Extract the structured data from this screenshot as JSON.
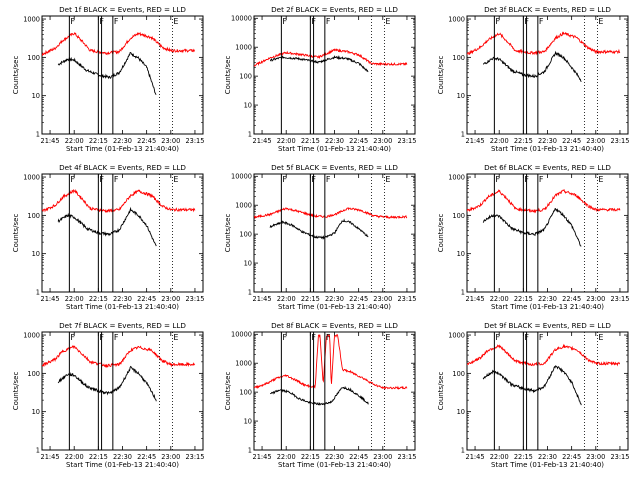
{
  "chart_data": [
    {
      "type": "line",
      "title": "Det 1f BLACK = Events, RED = LLD",
      "xlabel": "Start Time (01-Feb-13 21:40:40)",
      "ylabel": "Counts/sec",
      "xticks": [
        "21:45",
        "22:00",
        "22:15",
        "22:30",
        "22:45",
        "23:00",
        "23:15"
      ],
      "yticks": [
        "1",
        "10",
        "100",
        "1000"
      ],
      "ylim": [
        1,
        1200
      ],
      "yscale": "log",
      "x_range_minutes": [
        0,
        100
      ],
      "series": [
        {
          "name": "Events",
          "color": "#000000",
          "x": [
            10,
            16,
            20,
            28,
            35,
            42,
            48,
            55,
            60,
            65,
            71
          ],
          "values": [
            65,
            90,
            85,
            45,
            35,
            30,
            40,
            130,
            95,
            55,
            10
          ]
        },
        {
          "name": "LLD",
          "color": "#ff0000",
          "x": [
            0,
            8,
            13,
            20,
            25,
            30,
            40,
            48,
            55,
            60,
            68,
            75,
            80,
            95
          ],
          "values": [
            120,
            170,
            280,
            430,
            260,
            150,
            130,
            140,
            320,
            420,
            330,
            180,
            150,
            150
          ]
        }
      ],
      "markers": {
        "solid": [
          17,
          35,
          37,
          44
        ],
        "dotted": [
          73,
          81
        ],
        "flags": [
          {
            "label": "F",
            "x": 17
          },
          {
            "label": "F",
            "x": 35
          },
          {
            "label": "F",
            "x": 44
          },
          {
            "label": "E",
            "x": 81
          }
        ]
      }
    },
    {
      "type": "line",
      "title": "Det 2f BLACK = Events, RED = LLD",
      "xlabel": "Start Time (01-Feb-13 21:40:40)",
      "ylabel": "Counts/sec",
      "xticks": [
        "21:45",
        "22:00",
        "22:15",
        "22:30",
        "22:45",
        "23:00",
        "23:15"
      ],
      "yticks": [
        "1",
        "10",
        "100",
        "1000",
        "10000"
      ],
      "ylim": [
        1,
        12000
      ],
      "yscale": "log",
      "x_range_minutes": [
        0,
        100
      ],
      "series": [
        {
          "name": "Events",
          "color": "#000000",
          "x": [
            10,
            18,
            28,
            40,
            50,
            58,
            65,
            71
          ],
          "values": [
            350,
            450,
            400,
            300,
            450,
            400,
            280,
            140
          ]
        },
        {
          "name": "LLD",
          "color": "#ff0000",
          "x": [
            0,
            10,
            20,
            30,
            40,
            50,
            58,
            65,
            73,
            80,
            95
          ],
          "values": [
            230,
            430,
            650,
            550,
            450,
            800,
            700,
            550,
            270,
            260,
            260
          ]
        }
      ],
      "markers": {
        "solid": [
          17,
          35,
          37,
          44
        ],
        "dotted": [
          73,
          81
        ],
        "flags": [
          {
            "label": "F",
            "x": 17
          },
          {
            "label": "F",
            "x": 35
          },
          {
            "label": "F",
            "x": 44
          },
          {
            "label": "E",
            "x": 81
          }
        ]
      }
    },
    {
      "type": "line",
      "title": "Det 3f BLACK = Events, RED = LLD",
      "xlabel": "Start Time (01-Feb-13 21:40:40)",
      "ylabel": "Counts/sec",
      "xticks": [
        "21:45",
        "22:00",
        "22:15",
        "22:30",
        "22:45",
        "23:00",
        "23:15"
      ],
      "yticks": [
        "1",
        "10",
        "100",
        "1000"
      ],
      "ylim": [
        1,
        1200
      ],
      "yscale": "log",
      "x_range_minutes": [
        0,
        100
      ],
      "series": [
        {
          "name": "Events",
          "color": "#000000",
          "x": [
            10,
            16,
            20,
            28,
            35,
            42,
            48,
            55,
            60,
            65,
            71
          ],
          "values": [
            65,
            95,
            90,
            45,
            35,
            32,
            42,
            130,
            100,
            55,
            25
          ]
        },
        {
          "name": "LLD",
          "color": "#ff0000",
          "x": [
            0,
            8,
            13,
            20,
            25,
            30,
            40,
            48,
            55,
            60,
            68,
            75,
            80,
            95
          ],
          "values": [
            120,
            180,
            280,
            420,
            260,
            150,
            130,
            140,
            320,
            420,
            330,
            180,
            140,
            140
          ]
        }
      ],
      "markers": {
        "solid": [
          17,
          35,
          37,
          44
        ],
        "dotted": [
          73,
          81
        ],
        "flags": [
          {
            "label": "F",
            "x": 17
          },
          {
            "label": "F",
            "x": 35
          },
          {
            "label": "F",
            "x": 44
          },
          {
            "label": "E",
            "x": 81
          }
        ]
      }
    },
    {
      "type": "line",
      "title": "Det 4f BLACK = Events, RED = LLD",
      "xlabel": "Start Time (01-Feb-13 21:40:40)",
      "ylabel": "Counts/sec",
      "xticks": [
        "21:45",
        "22:00",
        "22:15",
        "22:30",
        "22:45",
        "23:00",
        "23:15"
      ],
      "yticks": [
        "1",
        "10",
        "100",
        "1000"
      ],
      "ylim": [
        1,
        1200
      ],
      "yscale": "log",
      "x_range_minutes": [
        0,
        100
      ],
      "series": [
        {
          "name": "Events",
          "color": "#000000",
          "x": [
            10,
            16,
            20,
            28,
            35,
            42,
            48,
            55,
            60,
            65,
            71
          ],
          "values": [
            70,
            100,
            90,
            45,
            35,
            32,
            42,
            140,
            100,
            55,
            15
          ]
        },
        {
          "name": "LLD",
          "color": "#ff0000",
          "x": [
            0,
            8,
            13,
            20,
            25,
            30,
            40,
            48,
            55,
            60,
            68,
            75,
            80,
            95
          ],
          "values": [
            130,
            180,
            300,
            450,
            270,
            150,
            130,
            140,
            330,
            430,
            330,
            170,
            140,
            140
          ]
        }
      ],
      "markers": {
        "solid": [
          17,
          35,
          37,
          44
        ],
        "dotted": [
          73,
          81
        ],
        "flags": [
          {
            "label": "F",
            "x": 17
          },
          {
            "label": "F",
            "x": 35
          },
          {
            "label": "F",
            "x": 44
          },
          {
            "label": "E",
            "x": 81
          }
        ]
      }
    },
    {
      "type": "line",
      "title": "Det 5f BLACK = Events, RED = LLD",
      "xlabel": "Start Time (01-Feb-13 21:40:40)",
      "ylabel": "Counts/sec",
      "xticks": [
        "21:45",
        "22:00",
        "22:15",
        "22:30",
        "22:45",
        "23:00",
        "23:15"
      ],
      "yticks": [
        "1",
        "10",
        "100",
        "1000",
        "10000"
      ],
      "ylim": [
        1,
        12000
      ],
      "yscale": "log",
      "x_range_minutes": [
        0,
        100
      ],
      "series": [
        {
          "name": "Events",
          "color": "#000000",
          "x": [
            10,
            18,
            24,
            30,
            38,
            44,
            50,
            55,
            60,
            66,
            71
          ],
          "values": [
            180,
            260,
            200,
            120,
            80,
            75,
            110,
            300,
            250,
            140,
            80
          ]
        },
        {
          "name": "LLD",
          "color": "#ff0000",
          "x": [
            0,
            10,
            20,
            28,
            38,
            45,
            52,
            58,
            66,
            75,
            85,
            95
          ],
          "values": [
            380,
            480,
            780,
            600,
            420,
            400,
            520,
            780,
            680,
            420,
            380,
            400
          ]
        }
      ],
      "markers": {
        "solid": [
          17,
          35,
          37,
          44
        ],
        "dotted": [
          73,
          81
        ],
        "flags": [
          {
            "label": "F",
            "x": 17
          },
          {
            "label": "F",
            "x": 35
          },
          {
            "label": "F",
            "x": 44
          },
          {
            "label": "E",
            "x": 81
          }
        ]
      }
    },
    {
      "type": "line",
      "title": "Det 6f BLACK = Events, RED = LLD",
      "xlabel": "Start Time (01-Feb-13 21:40:40)",
      "ylabel": "Counts/sec",
      "xticks": [
        "21:45",
        "22:00",
        "22:15",
        "22:30",
        "22:45",
        "23:00",
        "23:15"
      ],
      "yticks": [
        "1",
        "10",
        "100",
        "1000"
      ],
      "ylim": [
        1,
        1200
      ],
      "yscale": "log",
      "x_range_minutes": [
        0,
        100
      ],
      "series": [
        {
          "name": "Events",
          "color": "#000000",
          "x": [
            10,
            16,
            20,
            28,
            35,
            42,
            48,
            55,
            60,
            65,
            71
          ],
          "values": [
            70,
            100,
            95,
            45,
            35,
            32,
            42,
            150,
            100,
            55,
            15
          ]
        },
        {
          "name": "LLD",
          "color": "#ff0000",
          "x": [
            0,
            8,
            13,
            20,
            25,
            30,
            40,
            48,
            55,
            60,
            68,
            75,
            80,
            95
          ],
          "values": [
            130,
            180,
            300,
            430,
            270,
            150,
            130,
            140,
            330,
            430,
            330,
            180,
            140,
            140
          ]
        }
      ],
      "markers": {
        "solid": [
          17,
          35,
          37,
          44
        ],
        "dotted": [
          73,
          81
        ],
        "flags": [
          {
            "label": "F",
            "x": 17
          },
          {
            "label": "F",
            "x": 35
          },
          {
            "label": "F",
            "x": 44
          },
          {
            "label": "E",
            "x": 81
          }
        ]
      }
    },
    {
      "type": "line",
      "title": "Det 7f BLACK = Events, RED = LLD",
      "xlabel": "Start Time (01-Feb-13 21:40:40)",
      "ylabel": "Counts/sec",
      "xticks": [
        "21:45",
        "22:00",
        "22:15",
        "22:30",
        "22:45",
        "23:00",
        "23:15"
      ],
      "yticks": [
        "1",
        "10",
        "100",
        "1000"
      ],
      "ylim": [
        1,
        1200
      ],
      "yscale": "log",
      "x_range_minutes": [
        0,
        100
      ],
      "series": [
        {
          "name": "Events",
          "color": "#000000",
          "x": [
            10,
            16,
            20,
            28,
            35,
            42,
            48,
            55,
            60,
            65,
            71
          ],
          "values": [
            60,
            95,
            90,
            45,
            35,
            30,
            42,
            140,
            100,
            55,
            20
          ]
        },
        {
          "name": "LLD",
          "color": "#ff0000",
          "x": [
            0,
            8,
            13,
            20,
            25,
            30,
            40,
            48,
            55,
            60,
            68,
            75,
            80,
            95
          ],
          "values": [
            160,
            230,
            380,
            500,
            320,
            200,
            160,
            170,
            400,
            480,
            400,
            210,
            170,
            170
          ]
        }
      ],
      "markers": {
        "solid": [
          17,
          35,
          37,
          44
        ],
        "dotted": [
          73,
          81
        ],
        "flags": [
          {
            "label": "F",
            "x": 17
          },
          {
            "label": "F",
            "x": 35
          },
          {
            "label": "F",
            "x": 44
          },
          {
            "label": "E",
            "x": 81
          }
        ]
      }
    },
    {
      "type": "line",
      "title": "Det 8f BLACK = Events, RED = LLD",
      "xlabel": "Start Time (01-Feb-13 21:40:40)",
      "ylabel": "Counts/sec",
      "xticks": [
        "21:45",
        "22:00",
        "22:15",
        "22:30",
        "22:45",
        "23:00",
        "23:15"
      ],
      "yticks": [
        "1",
        "10",
        "100",
        "1000",
        "10000"
      ],
      "ylim": [
        1,
        12000
      ],
      "yscale": "log",
      "x_range_minutes": [
        0,
        100
      ],
      "series": [
        {
          "name": "Events",
          "color": "#000000",
          "x": [
            10,
            16,
            22,
            28,
            35,
            42,
            48,
            55,
            60,
            66,
            71
          ],
          "values": [
            85,
            120,
            100,
            60,
            42,
            38,
            45,
            150,
            120,
            70,
            40
          ]
        },
        {
          "name": "LLD",
          "color": "#ff0000",
          "x": [
            0,
            8,
            14,
            20,
            26,
            32,
            38,
            40,
            41,
            43,
            45,
            47,
            48,
            50,
            52,
            55,
            60,
            68,
            75,
            80,
            95
          ],
          "values": [
            140,
            200,
            300,
            380,
            260,
            170,
            150,
            9000,
            9000,
            180,
            9000,
            9000,
            150,
            9000,
            9000,
            600,
            500,
            300,
            180,
            140,
            140
          ]
        }
      ],
      "markers": {
        "solid": [
          17,
          35,
          37,
          44
        ],
        "dotted": [
          73,
          81
        ],
        "flags": [
          {
            "label": "F",
            "x": 17
          },
          {
            "label": "F",
            "x": 35
          },
          {
            "label": "F",
            "x": 44
          },
          {
            "label": "E",
            "x": 81
          }
        ]
      }
    },
    {
      "type": "line",
      "title": "Det 9f BLACK = Events, RED = LLD",
      "xlabel": "Start Time (01-Feb-13 21:40:40)",
      "ylabel": "Counts/sec",
      "xticks": [
        "21:45",
        "22:00",
        "22:15",
        "22:30",
        "22:45",
        "23:00",
        "23:15"
      ],
      "yticks": [
        "1",
        "10",
        "100",
        "1000"
      ],
      "ylim": [
        1,
        1200
      ],
      "yscale": "log",
      "x_range_minutes": [
        0,
        100
      ],
      "series": [
        {
          "name": "Events",
          "color": "#000000",
          "x": [
            10,
            16,
            20,
            28,
            35,
            42,
            48,
            55,
            60,
            65,
            71
          ],
          "values": [
            75,
            110,
            100,
            50,
            40,
            35,
            45,
            160,
            110,
            60,
            15
          ]
        },
        {
          "name": "LLD",
          "color": "#ff0000",
          "x": [
            0,
            8,
            13,
            20,
            25,
            30,
            40,
            48,
            55,
            60,
            68,
            75,
            80,
            95
          ],
          "values": [
            170,
            250,
            400,
            520,
            330,
            210,
            170,
            180,
            420,
            500,
            420,
            230,
            180,
            180
          ]
        }
      ],
      "markers": {
        "solid": [
          17,
          35,
          37,
          44
        ],
        "dotted": [
          73,
          81
        ],
        "flags": [
          {
            "label": "F",
            "x": 17
          },
          {
            "label": "F",
            "x": 35
          },
          {
            "label": "F",
            "x": 44
          },
          {
            "label": "E",
            "x": 81
          }
        ]
      }
    }
  ]
}
